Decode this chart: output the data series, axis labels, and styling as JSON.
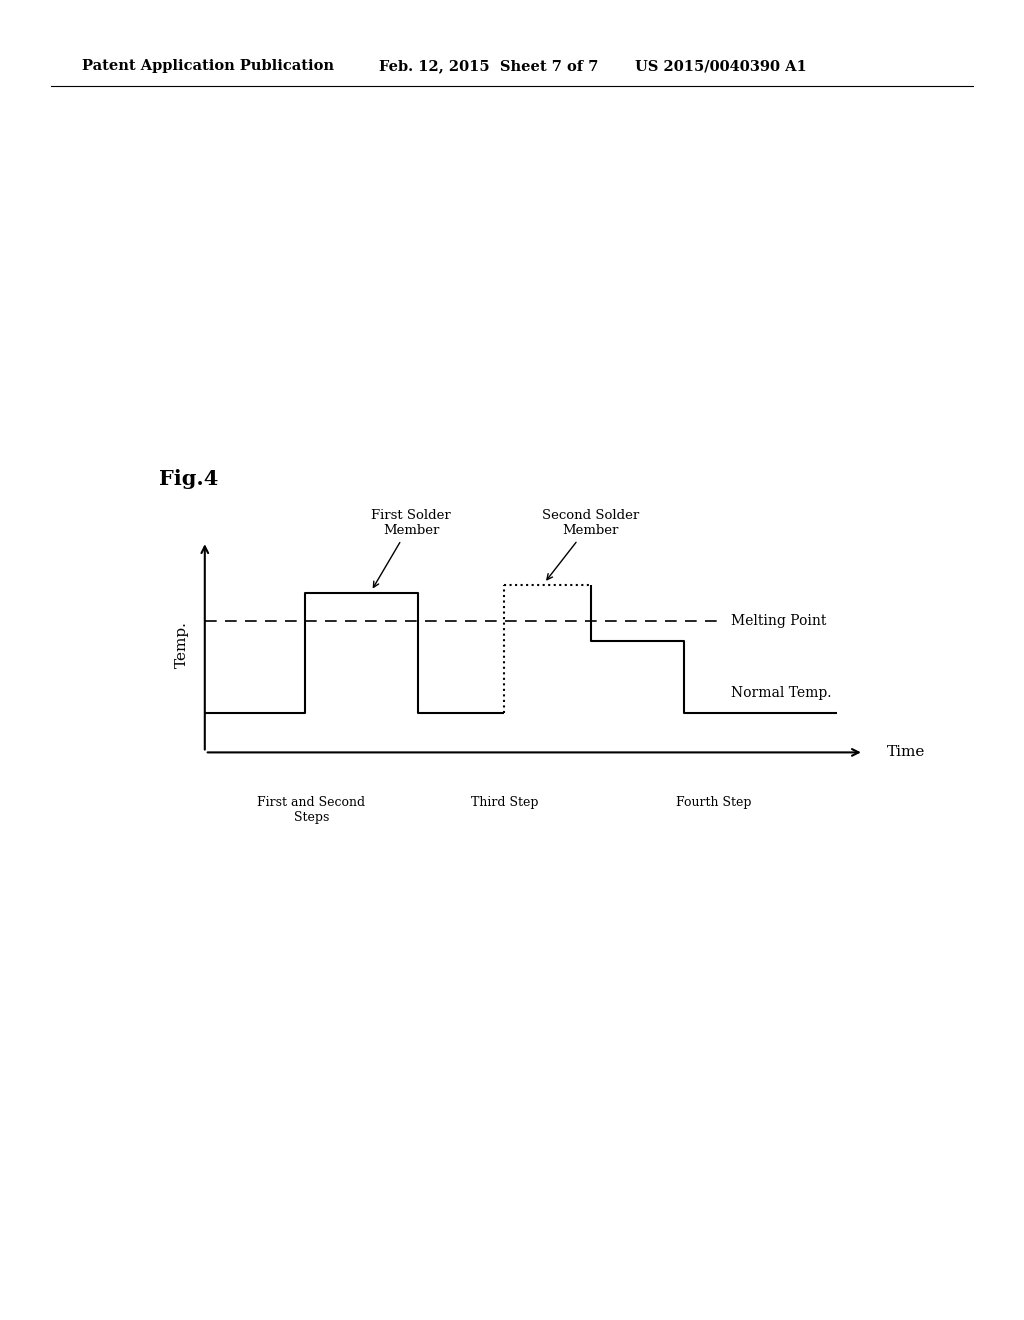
{
  "fig_label": "Fig.4",
  "header_left": "Patent Application Publication",
  "header_mid": "Feb. 12, 2015  Sheet 7 of 7",
  "header_right": "US 2015/0040390 A1",
  "ylabel": "Temp.",
  "xlabel": "Time",
  "melting_point_label": "Melting Point",
  "normal_temp_label": "Normal Temp.",
  "first_solder_label": "First Solder\nMember",
  "second_solder_label": "Second Solder\nMember",
  "step_labels": [
    "First and Second\nSteps",
    "Third Step",
    "Fourth Step"
  ],
  "background_color": "#ffffff",
  "line_color": "#000000"
}
